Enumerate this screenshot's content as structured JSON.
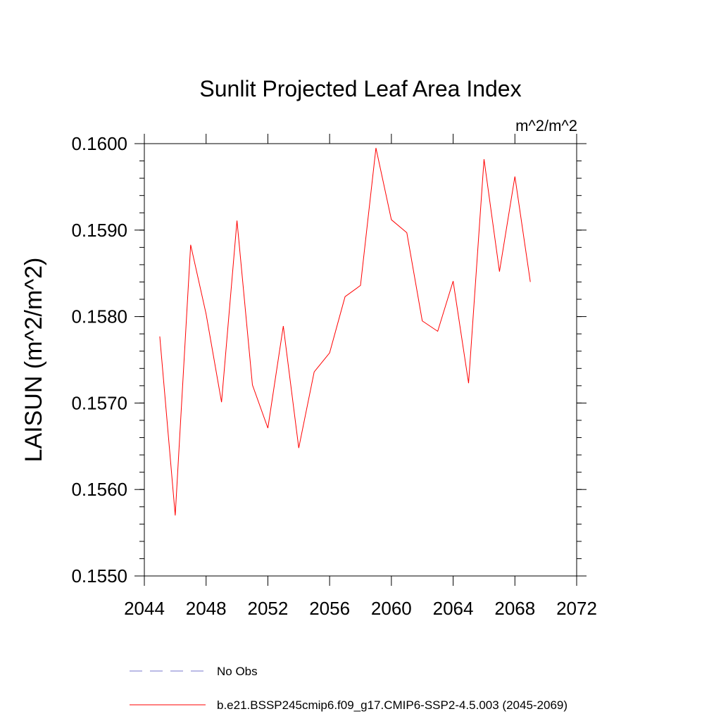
{
  "chart_data": {
    "type": "line",
    "title": "Sunlit Projected Leaf Area Index",
    "units": "m^2/m^2",
    "ylabel": "LAISUN  (m^2/m^2)",
    "xlabel": "",
    "xlim": [
      2044,
      2072
    ],
    "ylim": [
      0.155,
      0.16
    ],
    "x_ticks": [
      2044,
      2048,
      2052,
      2056,
      2060,
      2064,
      2068,
      2072
    ],
    "x_tick_labels": [
      "2044",
      "2048",
      "2052",
      "2056",
      "2060",
      "2064",
      "2068",
      "2072"
    ],
    "y_ticks": [
      0.155,
      0.156,
      0.157,
      0.158,
      0.159,
      0.16
    ],
    "y_tick_labels": [
      "0.1550",
      "0.1560",
      "0.1570",
      "0.1580",
      "0.1590",
      "0.1600"
    ],
    "grid": false,
    "legend_position": "bottom",
    "series": [
      {
        "name": "b.e21.BSSP245cmip6.f09_g17.CMIP6-SSP2-4.5.003 (2045-2069)",
        "color": "#ff0000",
        "dash": "solid",
        "x": [
          2045,
          2046,
          2047,
          2048,
          2049,
          2050,
          2051,
          2052,
          2053,
          2054,
          2055,
          2056,
          2057,
          2058,
          2059,
          2060,
          2061,
          2062,
          2063,
          2064,
          2065,
          2066,
          2067,
          2068,
          2069
        ],
        "y": [
          0.15777,
          0.1557,
          0.15883,
          0.15803,
          0.15701,
          0.15911,
          0.15721,
          0.15671,
          0.15789,
          0.15648,
          0.15736,
          0.15758,
          0.15823,
          0.15836,
          0.15995,
          0.15912,
          0.15897,
          0.15795,
          0.15783,
          0.15841,
          0.15723,
          0.15982,
          0.15852,
          0.15962,
          0.1584
        ]
      }
    ],
    "legend": [
      {
        "label": "No Obs",
        "color": "#7777cc",
        "dash": "dashed"
      },
      {
        "label": "b.e21.BSSP245cmip6.f09_g17.CMIP6-SSP2-4.5.003 (2045-2069)",
        "color": "#ff0000",
        "dash": "solid"
      }
    ]
  }
}
